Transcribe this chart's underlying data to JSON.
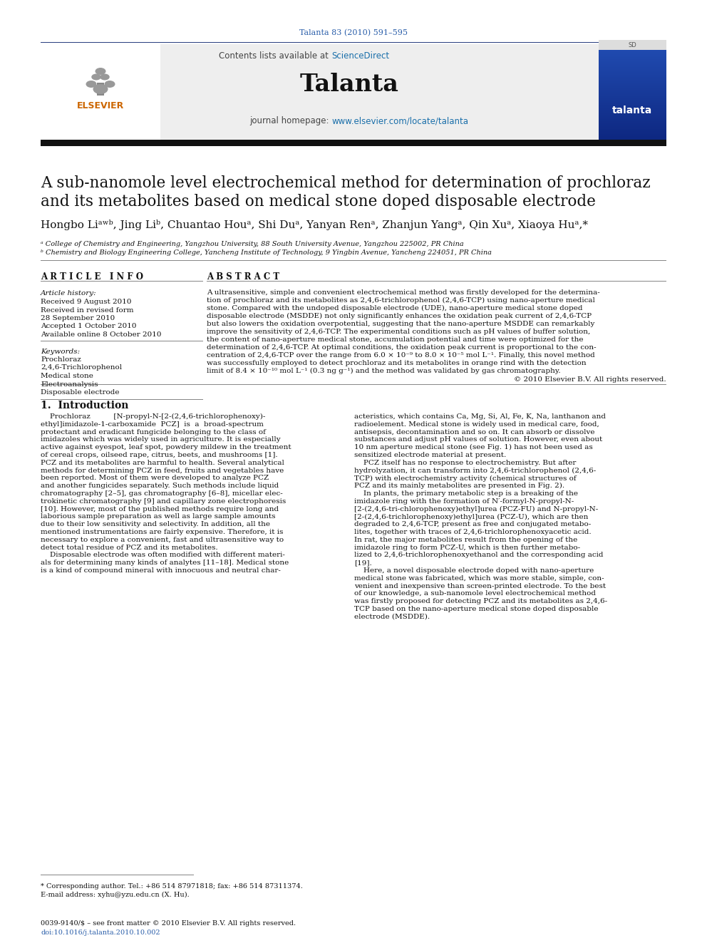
{
  "journal_ref": "Talanta 83 (2010) 591–595",
  "journal_ref_color": "#2b5faa",
  "sciencedirect_text": "ScienceDirect",
  "link_color": "#1a6faa",
  "journal_name": "Talanta",
  "journal_homepage_url": "www.elsevier.com/locate/talanta",
  "title_line1": "A sub-nanomole level electrochemical method for determination of prochloraz",
  "title_line2": "and its metabolites based on medical stone doped disposable electrode",
  "authors_str": "Hongbo Liᵃʷᵇ, Jing Liᵇ, Chuantao Houᵃ, Shi Duᵃ, Yanyan Renᵃ, Zhanjun Yangᵃ, Qin Xuᵃ, Xiaoya Huᵃ,*",
  "affil_a": "ᵃ College of Chemistry and Engineering, Yangzhou University, 88 South University Avenue, Yangzhou 225002, PR China",
  "affil_b": "ᵇ Chemistry and Biology Engineering College, Yancheng Institute of Technology, 9 Yingbin Avenue, Yancheng 224051, PR China",
  "article_info_title": "A R T I C L E   I N F O",
  "abstract_title": "A B S T R A C T",
  "article_history_label": "Article history:",
  "received": "Received 9 August 2010",
  "received_revised_1": "Received in revised form",
  "received_revised_2": "28 September 2010",
  "accepted": "Accepted 1 October 2010",
  "available": "Available online 8 October 2010",
  "keywords_label": "Keywords:",
  "keywords": [
    "Prochloraz",
    "2,4,6-Trichlorophenol",
    "Medical stone",
    "Electroanalysis",
    "Disposable electrode"
  ],
  "abstract_lines": [
    "A ultrasensitive, simple and convenient electrochemical method was firstly developed for the determina-",
    "tion of prochloraz and its metabolites as 2,4,6-trichlorophenol (2,4,6-TCP) using nano-aperture medical",
    "stone. Compared with the undoped disposable electrode (UDE), nano-aperture medical stone doped",
    "disposable electrode (MSDDE) not only significantly enhances the oxidation peak current of 2,4,6-TCP",
    "but also lowers the oxidation overpotential, suggesting that the nano-aperture MSDDE can remarkably",
    "improve the sensitivity of 2,4,6-TCP. The experimental conditions such as pH values of buffer solution,",
    "the content of nano-aperture medical stone, accumulation potential and time were optimized for the",
    "determination of 2,4,6-TCP. At optimal conditions, the oxidation peak current is proportional to the con-",
    "centration of 2,4,6-TCP over the range from 6.0 × 10⁻⁹ to 8.0 × 10⁻⁵ mol L⁻¹. Finally, this novel method",
    "was successfully employed to detect prochloraz and its metabolites in orange rind with the detection",
    "limit of 8.4 × 10⁻¹⁰ mol L⁻¹ (0.3 ng g⁻¹) and the method was validated by gas chromatography."
  ],
  "copyright": "© 2010 Elsevier B.V. All rights reserved.",
  "intro_title": "1.  Introduction",
  "intro_col1_lines": [
    "    Prochloraz          [N-propyl-N-[2-(2,4,6-trichlorophenoxy)-",
    "ethyl]imidazole-1-carboxamide  PCZ]  is  a  broad-spectrum",
    "protectant and eradicant fungicide belonging to the class of",
    "imidazoles which was widely used in agriculture. It is especially",
    "active against eyespot, leaf spot, powdery mildew in the treatment",
    "of cereal crops, oilseed rape, citrus, beets, and mushrooms [1].",
    "PCZ and its metabolites are harmful to health. Several analytical",
    "methods for determining PCZ in feed, fruits and vegetables have",
    "been reported. Most of them were developed to analyze PCZ",
    "and another fungicides separately. Such methods include liquid",
    "chromatography [2–5], gas chromatography [6–8], micellar elec-",
    "trokinetic chromatography [9] and capillary zone electrophoresis",
    "[10]. However, most of the published methods require long and",
    "laborious sample preparation as well as large sample amounts",
    "due to their low sensitivity and selectivity. In addition, all the",
    "mentioned instrumentations are fairly expensive. Therefore, it is",
    "necessary to explore a convenient, fast and ultrasensitive way to",
    "detect total residue of PCZ and its metabolites.",
    "    Disposable electrode was often modified with different materi-",
    "als for determining many kinds of analytes [11–18]. Medical stone",
    "is a kind of compound mineral with innocuous and neutral char-"
  ],
  "intro_col2_lines": [
    "acteristics, which contains Ca, Mg, Si, Al, Fe, K, Na, lanthanon and",
    "radioelement. Medical stone is widely used in medical care, food,",
    "antisepsis, decontamination and so on. It can absorb or dissolve",
    "substances and adjust pH values of solution. However, even about",
    "10 nm aperture medical stone (see Fig. 1) has not been used as",
    "sensitized electrode material at present.",
    "    PCZ itself has no response to electrochemistry. But after",
    "hydrolyzation, it can transform into 2,4,6-trichlorophenol (2,4,6-",
    "TCP) with electrochemistry activity (chemical structures of",
    "PCZ and its mainly metabolites are presented in Fig. 2).",
    "    In plants, the primary metabolic step is a breaking of the",
    "imidazole ring with the formation of N′-formyl-N-propyl-N-",
    "[2-(2,4,6-tri-chlorophenoxy)ethyl]urea (PCZ-FU) and N-propyl-N-",
    "[2-(2,4,6-trichlorophenoxy)ethyl]urea (PCZ-U), which are then",
    "degraded to 2,4,6-TCP, present as free and conjugated metabo-",
    "lites, together with traces of 2,4,6-trichlorophenoxyacetic acid.",
    "In rat, the major metabolites result from the opening of the",
    "imidazole ring to form PCZ-U, which is then further metabo-",
    "lized to 2,4,6-trichlorophenoxyethanol and the corresponding acid",
    "[19].",
    "    Here, a novel disposable electrode doped with nano-aperture",
    "medical stone was fabricated, which was more stable, simple, con-",
    "venient and inexpensive than screen-printed electrode. To the best",
    "of our knowledge, a sub-nanomole level electrochemical method",
    "was firstly proposed for detecting PCZ and its metabolites as 2,4,6-",
    "TCP based on the nano-aperture medical stone doped disposable",
    "electrode (MSDDE)."
  ],
  "footnote_star": "* Corresponding author. Tel.: +86 514 87971818; fax: +86 514 87311374.",
  "footnote_email": "E-mail address: xyhu@yzu.edu.cn (X. Hu).",
  "footer_issn": "0039-9140/$ – see front matter © 2010 Elsevier B.V. All rights reserved.",
  "footer_doi": "doi:10.1016/j.talanta.2010.10.002",
  "bg_color": "#ffffff",
  "blue_color": "#2b5faa",
  "orange_color": "#cc6600",
  "dark_color": "#111111",
  "gray_color": "#888888"
}
